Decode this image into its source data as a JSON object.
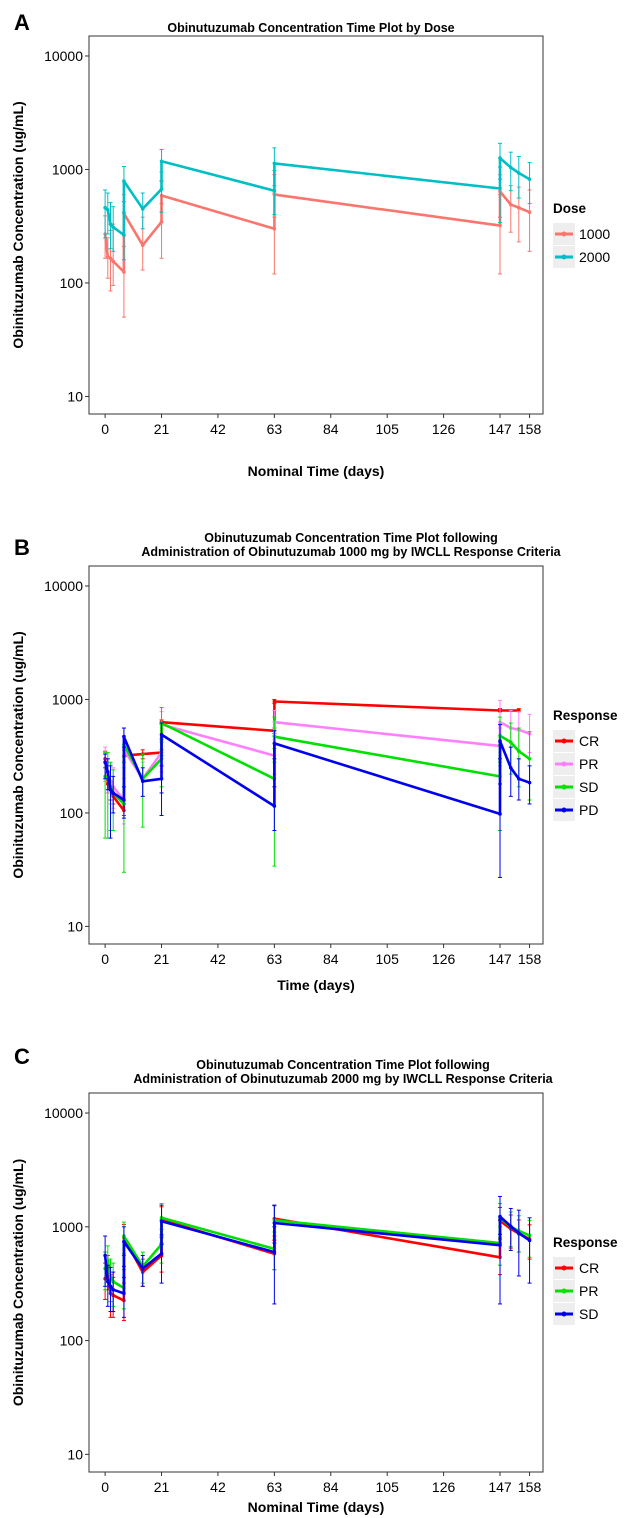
{
  "chart_data": [
    {
      "panel_label": "A",
      "type": "line",
      "title_lines": [
        "Obinutuzumab Concentration Time Plot by Dose"
      ],
      "xlabel": "Nominal Time (days)",
      "ylabel": "Obinituzumab Concentration (ug/mL)",
      "y_scale": "log10",
      "ylim": [
        7,
        15000
      ],
      "xlim": [
        -6,
        163
      ],
      "x_ticks": [
        0,
        21,
        42,
        63,
        84,
        105,
        126,
        147,
        158
      ],
      "y_ticks": [
        10,
        100,
        1000,
        10000
      ],
      "y_tick_labels": [
        "10",
        "100",
        "1000",
        "10000"
      ],
      "legend_title": "Dose",
      "series": [
        {
          "name": "1000",
          "color": "#f8766d",
          "x": [
            0,
            1,
            2,
            3,
            7,
            7,
            14,
            21,
            21,
            63,
            63,
            147,
            147,
            151,
            154,
            158
          ],
          "y": [
            270,
            170,
            165,
            155,
            125,
            410,
            215,
            345,
            590,
            300,
            600,
            320,
            640,
            490,
            460,
            420
          ],
          "err_lo": [
            165,
            110,
            85,
            95,
            50,
            260,
            130,
            165,
            420,
            120,
            380,
            120,
            380,
            280,
            230,
            190
          ],
          "err_hi": [
            390,
            250,
            290,
            330,
            210,
            600,
            380,
            500,
            800,
            620,
            900,
            600,
            900,
            720,
            700,
            660
          ]
        },
        {
          "name": "2000",
          "color": "#00bfc4",
          "x": [
            0,
            1,
            2,
            3,
            7,
            7,
            14,
            21,
            21,
            63,
            63,
            147,
            147,
            151,
            154,
            158
          ],
          "y": [
            460,
            440,
            330,
            310,
            265,
            790,
            450,
            670,
            1180,
            650,
            1130,
            680,
            1260,
            1040,
            930,
            820
          ],
          "err_lo": [
            250,
            270,
            200,
            190,
            160,
            520,
            300,
            420,
            780,
            400,
            720,
            340,
            820,
            650,
            560,
            500
          ],
          "err_hi": [
            660,
            620,
            510,
            470,
            420,
            1060,
            620,
            950,
            1500,
            980,
            1550,
            1050,
            1700,
            1420,
            1300,
            1150
          ]
        }
      ]
    },
    {
      "panel_label": "B",
      "type": "line",
      "title_lines": [
        "Obinutuzumab Concentration Time Plot following",
        "Administration of Obinutuzumab 1000 mg by IWCLL Response Criteria"
      ],
      "xlabel": "Time (days)",
      "ylabel": "Obinituzumab Concentration (ug/mL)",
      "y_scale": "log10",
      "ylim": [
        7,
        15000
      ],
      "xlim": [
        -6,
        163
      ],
      "x_ticks": [
        0,
        21,
        42,
        63,
        84,
        105,
        126,
        147,
        158
      ],
      "y_ticks": [
        10,
        100,
        1000,
        10000
      ],
      "y_tick_labels": [
        "10",
        "100",
        "1000",
        "10000"
      ],
      "legend_title": "Response",
      "series": [
        {
          "name": "CR",
          "color": "#ff0000",
          "x": [
            0,
            1,
            2,
            3,
            7,
            7,
            14,
            21,
            21,
            63,
            63,
            147,
            147,
            154
          ],
          "y": [
            300,
            180,
            160,
            140,
            105,
            320,
            330,
            340,
            630,
            530,
            960,
            800,
            800,
            800
          ],
          "err_lo": [
            250,
            150,
            130,
            120,
            95,
            280,
            300,
            320,
            600,
            500,
            920,
            780,
            780,
            780
          ],
          "err_hi": [
            350,
            210,
            190,
            170,
            120,
            360,
            360,
            360,
            660,
            560,
            1000,
            830,
            830,
            830
          ]
        },
        {
          "name": "PR",
          "color": "#ff80ff",
          "x": [
            0,
            1,
            2,
            3,
            7,
            7,
            14,
            21,
            21,
            63,
            63,
            147,
            147,
            151,
            154,
            158
          ],
          "y": [
            280,
            220,
            190,
            170,
            130,
            360,
            200,
            340,
            600,
            320,
            630,
            390,
            630,
            560,
            540,
            500
          ],
          "err_lo": [
            190,
            150,
            120,
            110,
            80,
            250,
            140,
            230,
            450,
            220,
            480,
            260,
            420,
            380,
            360,
            340
          ],
          "err_hi": [
            380,
            300,
            270,
            250,
            200,
            480,
            280,
            460,
            780,
            440,
            800,
            560,
            980,
            800,
            780,
            740
          ]
        },
        {
          "name": "SD",
          "color": "#00e000",
          "x": [
            0,
            1,
            2,
            3,
            7,
            7,
            14,
            21,
            21,
            63,
            63,
            147,
            147,
            151,
            154,
            158
          ],
          "y": [
            210,
            200,
            170,
            150,
            120,
            400,
            200,
            300,
            620,
            200,
            470,
            210,
            480,
            420,
            350,
            300
          ],
          "err_lo": [
            60,
            60,
            70,
            70,
            30,
            280,
            75,
            170,
            420,
            34,
            280,
            70,
            280,
            220,
            170,
            130
          ],
          "err_hi": [
            340,
            340,
            280,
            240,
            310,
            560,
            330,
            440,
            850,
            370,
            700,
            400,
            700,
            620,
            560,
            520
          ]
        },
        {
          "name": "PD",
          "color": "#0000ee",
          "x": [
            0,
            1,
            2,
            3,
            7,
            7,
            14,
            21,
            21,
            63,
            63,
            147,
            147,
            151,
            154,
            158
          ],
          "y": [
            280,
            230,
            160,
            150,
            130,
            470,
            190,
            200,
            490,
            115,
            410,
            98,
            430,
            250,
            200,
            185
          ],
          "err_lo": [
            200,
            160,
            60,
            100,
            90,
            380,
            140,
            150,
            95,
            70,
            300,
            27,
            300,
            140,
            130,
            120
          ],
          "err_hi": [
            330,
            300,
            260,
            210,
            170,
            560,
            250,
            260,
            620,
            170,
            530,
            180,
            600,
            380,
            300,
            260
          ]
        }
      ]
    },
    {
      "panel_label": "C",
      "type": "line",
      "title_lines": [
        "Obinutuzumab Concentration Time Plot following",
        "Administration of Obinutuzumab 2000 mg by IWCLL Response Criteria"
      ],
      "xlabel": "Nominal Time (days)",
      "ylabel": "Obinituzumab Concentration (ug/mL)",
      "y_scale": "log10",
      "ylim": [
        7,
        15000
      ],
      "xlim": [
        -6,
        163
      ],
      "x_ticks": [
        0,
        21,
        42,
        63,
        84,
        105,
        126,
        147,
        158
      ],
      "y_ticks": [
        10,
        100,
        1000,
        10000
      ],
      "y_tick_labels": [
        "10",
        "100",
        "1000",
        "10000"
      ],
      "legend_title": "Response",
      "series": [
        {
          "name": "CR",
          "color": "#ff0000",
          "x": [
            0,
            1,
            2,
            3,
            7,
            7,
            14,
            21,
            21,
            63,
            63,
            147,
            147,
            151,
            154,
            158
          ],
          "y": [
            350,
            420,
            260,
            250,
            225,
            800,
            400,
            560,
            1150,
            580,
            1180,
            540,
            1130,
            960,
            870,
            780
          ],
          "err_lo": [
            230,
            280,
            160,
            160,
            150,
            560,
            300,
            400,
            800,
            420,
            830,
            380,
            780,
            650,
            600,
            520
          ],
          "err_hi": [
            480,
            560,
            380,
            360,
            320,
            1050,
            520,
            720,
            1500,
            760,
            1530,
            720,
            1480,
            1270,
            1150,
            1040
          ]
        },
        {
          "name": "PR",
          "color": "#00e000",
          "x": [
            0,
            1,
            2,
            3,
            7,
            7,
            14,
            21,
            21,
            63,
            63,
            147,
            147,
            151,
            154,
            158
          ],
          "y": [
            430,
            500,
            360,
            330,
            290,
            830,
            450,
            700,
            1200,
            640,
            1140,
            720,
            1200,
            1000,
            920,
            840
          ],
          "err_lo": [
            280,
            330,
            220,
            200,
            190,
            580,
            320,
            480,
            820,
            420,
            780,
            460,
            800,
            670,
            600,
            540
          ],
          "err_hi": [
            600,
            680,
            520,
            480,
            420,
            1100,
            600,
            950,
            1600,
            900,
            1550,
            1000,
            1600,
            1350,
            1250,
            1140
          ]
        },
        {
          "name": "SD",
          "color": "#0000ee",
          "x": [
            0,
            1,
            2,
            3,
            7,
            7,
            14,
            21,
            21,
            63,
            63,
            147,
            147,
            151,
            154,
            158
          ],
          "y": [
            560,
            330,
            300,
            280,
            260,
            740,
            430,
            580,
            1120,
            600,
            1080,
            690,
            1230,
            1010,
            880,
            760
          ],
          "err_lo": [
            300,
            200,
            180,
            180,
            160,
            450,
            300,
            320,
            700,
            210,
            720,
            210,
            860,
            620,
            370,
            320
          ],
          "err_hi": [
            830,
            460,
            440,
            400,
            360,
            1000,
            560,
            850,
            1550,
            1000,
            1550,
            1150,
            1850,
            1450,
            1400,
            1200
          ]
        }
      ]
    }
  ]
}
